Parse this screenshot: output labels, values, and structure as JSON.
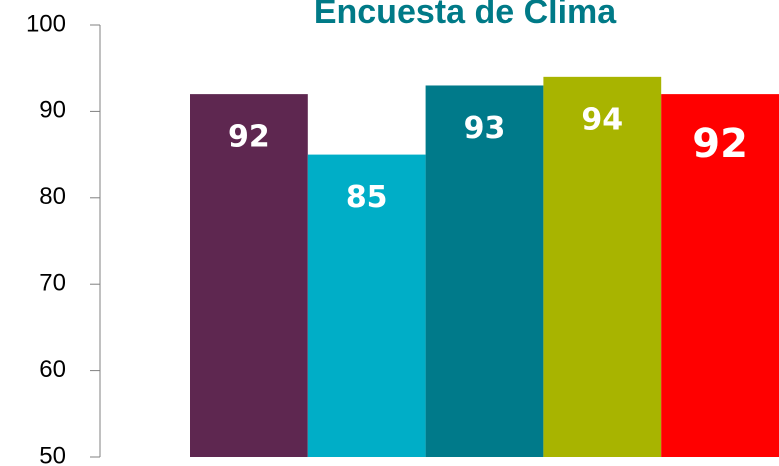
{
  "chart_data": {
    "type": "bar",
    "title": "Encuesta de Clima",
    "categories": [
      null,
      null,
      null,
      null,
      null
    ],
    "values": [
      92,
      85,
      93,
      94,
      92
    ],
    "colors": [
      "#5e2750",
      "#00aec7",
      "#007a8a",
      "#a8b400",
      "#ff0000"
    ],
    "ylim": [
      50,
      100
    ],
    "yticks": [
      50,
      60,
      70,
      80,
      90,
      100
    ],
    "grid": false
  }
}
